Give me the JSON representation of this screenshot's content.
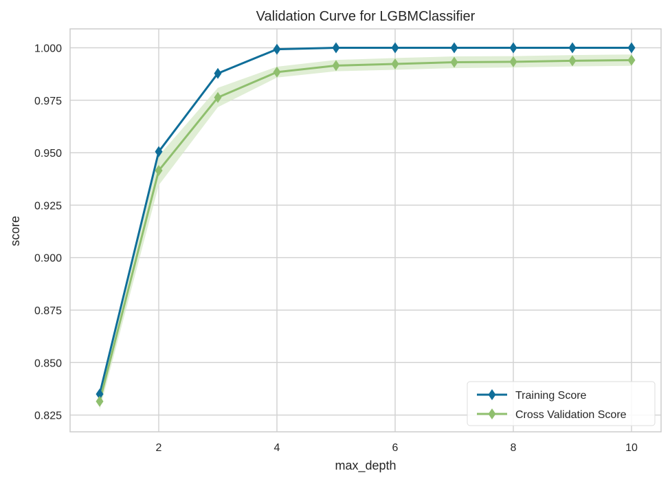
{
  "chart_data": {
    "type": "line",
    "title": "Validation Curve for LGBMClassifier",
    "xlabel": "max_depth",
    "ylabel": "score",
    "x": [
      1,
      2,
      3,
      4,
      5,
      6,
      7,
      8,
      9,
      10
    ],
    "xlim": [
      0.5,
      10.5
    ],
    "ylim": [
      0.817,
      1.009
    ],
    "xticks": [
      2,
      4,
      6,
      8,
      10
    ],
    "xtick_labels": [
      "2",
      "4",
      "6",
      "8",
      "10"
    ],
    "yticks": [
      0.825,
      0.85,
      0.875,
      0.9,
      0.925,
      0.95,
      0.975,
      1.0
    ],
    "ytick_labels": [
      "0.825",
      "0.850",
      "0.875",
      "0.900",
      "0.925",
      "0.950",
      "0.975",
      "1.000"
    ],
    "grid": true,
    "legend_position": "bottom-right",
    "series": [
      {
        "name": "Training Score",
        "color": "#0f6e99",
        "marker": "diamond",
        "values": [
          0.835,
          0.9505,
          0.9878,
          0.9993,
          1.0,
          1.0,
          1.0,
          1.0,
          1.0,
          1.0
        ],
        "band_lower": [
          0.834,
          0.95,
          0.9874,
          0.9992,
          1.0,
          1.0,
          1.0,
          1.0,
          1.0,
          1.0
        ],
        "band_upper": [
          0.836,
          0.951,
          0.9882,
          0.9994,
          1.0,
          1.0,
          1.0,
          1.0,
          1.0,
          1.0
        ]
      },
      {
        "name": "Cross Validation Score",
        "color": "#8fbf6e",
        "marker": "diamond",
        "band_color": "#d5e8c7",
        "values": [
          0.8315,
          0.9415,
          0.9763,
          0.9884,
          0.9915,
          0.9923,
          0.9931,
          0.9933,
          0.9938,
          0.9941
        ],
        "band_lower": [
          0.8275,
          0.9345,
          0.9717,
          0.9858,
          0.9888,
          0.9895,
          0.9903,
          0.9906,
          0.9911,
          0.9914
        ],
        "band_upper": [
          0.8355,
          0.9485,
          0.9809,
          0.991,
          0.9942,
          0.9951,
          0.9959,
          0.996,
          0.9965,
          0.9968
        ]
      }
    ]
  }
}
